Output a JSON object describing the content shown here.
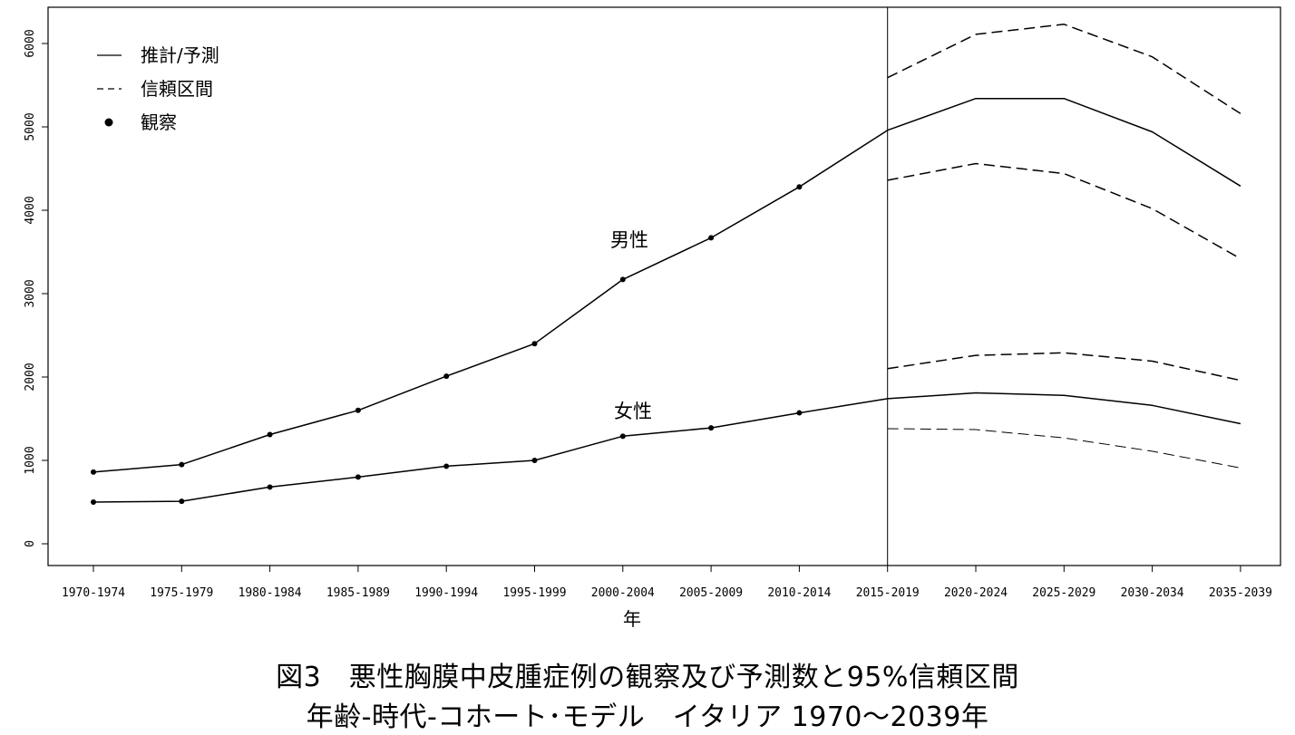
{
  "chart_data": {
    "type": "line",
    "title": "",
    "xlabel": "年",
    "ylabel": "",
    "categories": [
      "1970-1974",
      "1975-1979",
      "1980-1984",
      "1985-1989",
      "1990-1994",
      "1995-1999",
      "2000-2004",
      "2005-2009",
      "2010-2014",
      "2015-2019",
      "2020-2024",
      "2025-2029",
      "2030-2034",
      "2035-2039"
    ],
    "yticks": [
      "0",
      "1000",
      "2000",
      "3000",
      "4000",
      "5000",
      "6000"
    ],
    "ylim": [
      0,
      6000
    ],
    "grid": false,
    "legend": {
      "placement": "top-left",
      "entries": [
        {
          "label": "推計/予測",
          "style": "solid-line"
        },
        {
          "label": "信頼区間",
          "style": "dashed-line"
        },
        {
          "label": "観察",
          "style": "point"
        }
      ]
    },
    "vertical_marker": "2015-2019",
    "annotations": [
      {
        "text": "男性",
        "series": "male"
      },
      {
        "text": "女性",
        "series": "female"
      }
    ],
    "series": [
      {
        "key": "male_observed",
        "values": [
          860,
          950,
          1310,
          1600,
          2010,
          2400,
          3170,
          3670,
          4280,
          null,
          null,
          null,
          null,
          null
        ]
      },
      {
        "key": "male_estimate",
        "values": [
          860,
          950,
          1310,
          1600,
          2010,
          2400,
          3170,
          3670,
          4280,
          4960,
          5340,
          5340,
          4940,
          4290
        ]
      },
      {
        "key": "male_ci_upper",
        "values": [
          null,
          null,
          null,
          null,
          null,
          null,
          null,
          null,
          null,
          5590,
          6110,
          6230,
          5840,
          5160
        ]
      },
      {
        "key": "male_ci_lower",
        "values": [
          null,
          null,
          null,
          null,
          null,
          null,
          null,
          null,
          null,
          4360,
          4560,
          4440,
          4020,
          3420
        ]
      },
      {
        "key": "female_observed",
        "values": [
          500,
          510,
          680,
          800,
          930,
          1000,
          1290,
          1390,
          1570,
          null,
          null,
          null,
          null,
          null
        ]
      },
      {
        "key": "female_estimate",
        "values": [
          500,
          510,
          680,
          800,
          930,
          1000,
          1290,
          1390,
          1570,
          1740,
          1810,
          1780,
          1660,
          1440
        ]
      },
      {
        "key": "female_ci_upper",
        "values": [
          null,
          null,
          null,
          null,
          null,
          null,
          null,
          null,
          null,
          2100,
          2260,
          2290,
          2190,
          1960
        ]
      },
      {
        "key": "female_ci_lower",
        "values": [
          null,
          null,
          null,
          null,
          null,
          null,
          null,
          null,
          null,
          1380,
          1370,
          1270,
          1110,
          910
        ]
      }
    ]
  },
  "caption": {
    "line1": "図3　悪性胸膜中皮腫症例の観察及び予測数と95%信頼区間",
    "line2": "年齢-時代-コホート･モデル　イタリア 1970～2039年"
  }
}
